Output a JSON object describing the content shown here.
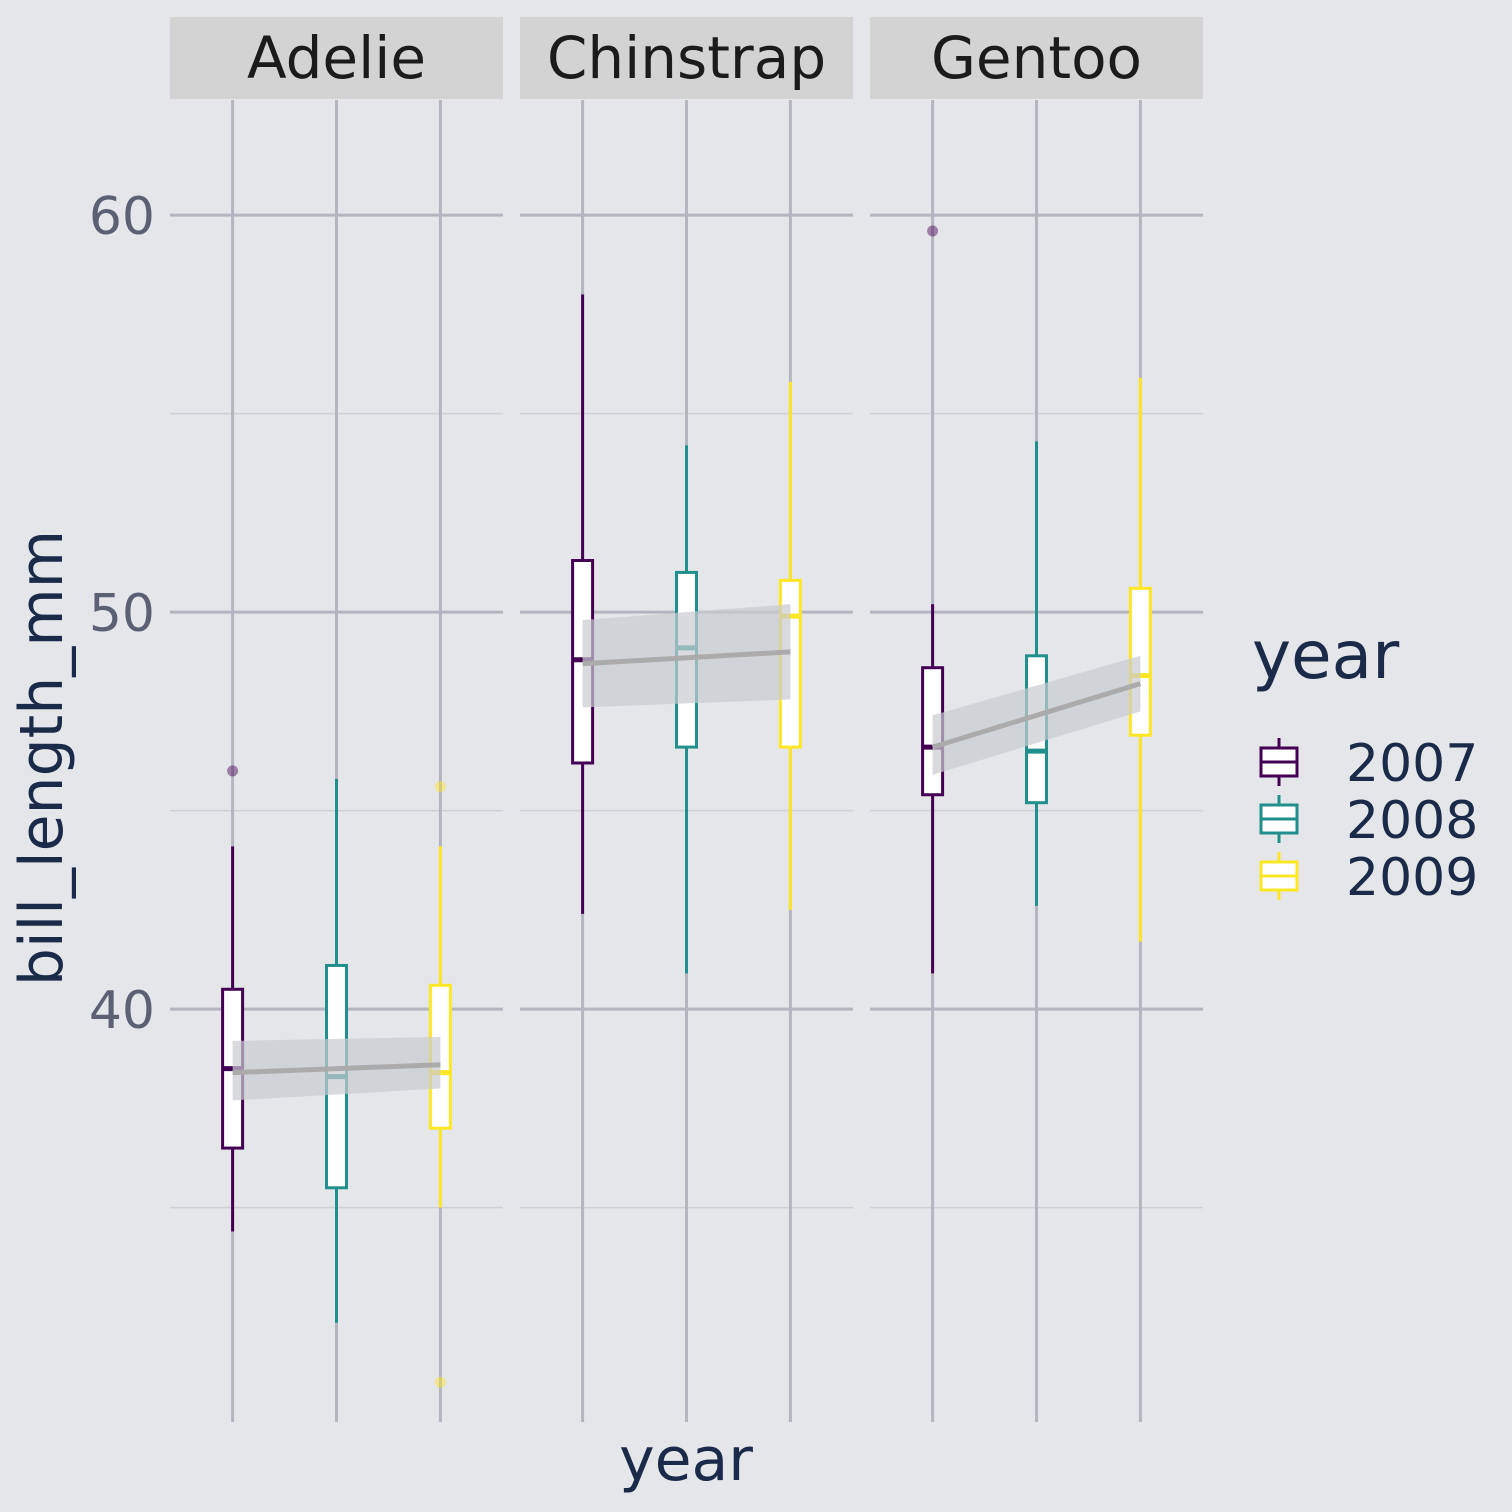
{
  "chart_data": {
    "type": "boxplot",
    "facet_by": "species",
    "facets": [
      {
        "label": "Adelie",
        "boxes": [
          {
            "year": "2007",
            "min": 34.4,
            "q1": 36.5,
            "median": 38.5,
            "q3": 40.5,
            "max": 44.1,
            "outliers": [
              46.0
            ]
          },
          {
            "year": "2008",
            "min": 32.1,
            "q1": 35.5,
            "median": 38.3,
            "q3": 41.1,
            "max": 45.8,
            "outliers": []
          },
          {
            "year": "2009",
            "min": 35.0,
            "q1": 37.0,
            "median": 38.4,
            "q3": 40.6,
            "max": 44.1,
            "outliers": [
              45.6,
              30.6
            ]
          }
        ],
        "trend": {
          "start": 38.4,
          "end": 38.6,
          "band_start": [
            37.7,
            39.2
          ],
          "band_end": [
            38.0,
            39.3
          ]
        }
      },
      {
        "label": "Chinstrap",
        "boxes": [
          {
            "year": "2007",
            "min": 42.4,
            "q1": 46.2,
            "median": 48.8,
            "q3": 51.3,
            "max": 58.0,
            "outliers": []
          },
          {
            "year": "2008",
            "min": 40.9,
            "q1": 46.6,
            "median": 49.1,
            "q3": 51.0,
            "max": 54.2,
            "outliers": []
          },
          {
            "year": "2009",
            "min": 42.5,
            "q1": 46.6,
            "median": 49.9,
            "q3": 50.8,
            "max": 55.8,
            "outliers": []
          }
        ],
        "trend": {
          "start": 48.7,
          "end": 49.0,
          "band_start": [
            47.6,
            49.8
          ],
          "band_end": [
            47.8,
            50.2
          ]
        }
      },
      {
        "label": "Gentoo",
        "boxes": [
          {
            "year": "2007",
            "min": 40.9,
            "q1": 45.4,
            "median": 46.6,
            "q3": 48.6,
            "max": 50.2,
            "outliers": [
              59.6
            ]
          },
          {
            "year": "2008",
            "min": 42.6,
            "q1": 45.2,
            "median": 46.5,
            "q3": 48.9,
            "max": 54.3,
            "outliers": []
          },
          {
            "year": "2009",
            "min": 41.7,
            "q1": 46.9,
            "median": 48.4,
            "q3": 50.6,
            "max": 55.9,
            "outliers": []
          }
        ],
        "trend": {
          "start": 46.6,
          "end": 48.2,
          "band_start": [
            45.9,
            47.4
          ],
          "band_end": [
            47.5,
            48.9
          ]
        }
      }
    ],
    "xlabel": "year",
    "ylabel": "bill_length_mm",
    "ylim": [
      29.6,
      62.9
    ],
    "yticks": [
      40,
      50,
      60
    ],
    "y_minor_ticks": [
      35,
      45,
      55
    ],
    "legend": {
      "title": "year",
      "placement": "right",
      "entries": [
        {
          "label": "2007",
          "color": "#440154"
        },
        {
          "label": "2008",
          "color": "#21908c"
        },
        {
          "label": "2009",
          "color": "#fde725"
        }
      ]
    },
    "grid": true,
    "colors": {
      "background": "#e5e6ea",
      "strip_fill": "#d3d3d3",
      "grid_major": "#b3b5bf",
      "grid_minor": "#cfd0d6",
      "trend_line": "#ababab",
      "trend_band": "#c7cbcf"
    }
  }
}
